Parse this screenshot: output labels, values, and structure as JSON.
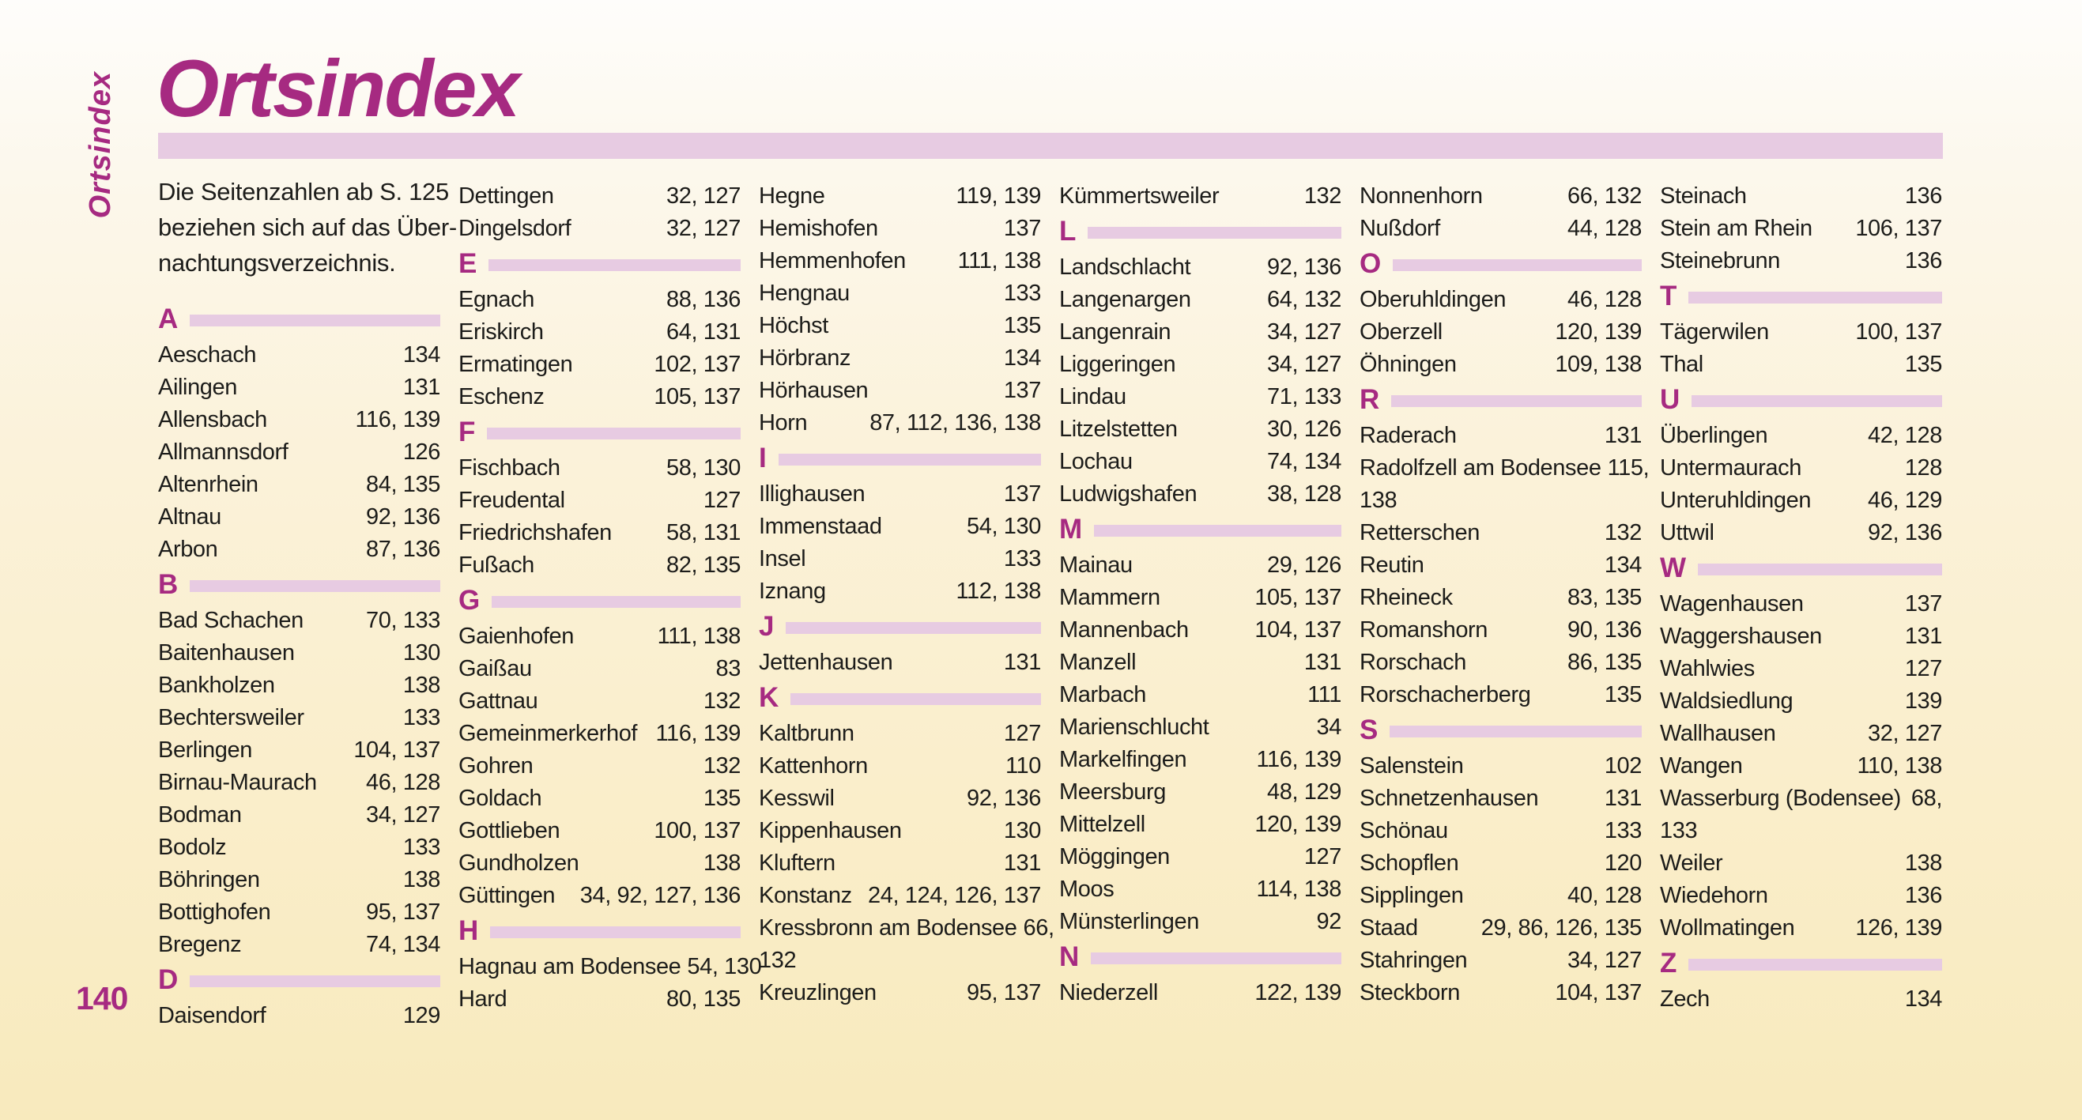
{
  "page": {
    "side_label": "Ortsindex",
    "title": "Ortsindex",
    "intro_lines": [
      "Die Seitenzahlen ab S. 125",
      "beziehen sich auf das Über-",
      "nachtungsverzeichnis."
    ],
    "page_number": "140"
  },
  "colors": {
    "magenta": "#a62a81",
    "bar_pink": "#e7cbe2",
    "text": "#1c1c1a"
  },
  "columns": [
    {
      "blocks": [
        {
          "letter": "A"
        },
        {
          "name": "Aeschach",
          "pages": "134"
        },
        {
          "name": "Ailingen",
          "pages": "131"
        },
        {
          "name": "Allensbach",
          "pages": "116, 139"
        },
        {
          "name": "Allmannsdorf",
          "pages": "126"
        },
        {
          "name": "Altenrhein",
          "pages": "84, 135"
        },
        {
          "name": "Altnau",
          "pages": "92, 136"
        },
        {
          "name": "Arbon",
          "pages": "87, 136"
        },
        {
          "letter": "B"
        },
        {
          "name": "Bad Schachen",
          "pages": "70, 133"
        },
        {
          "name": "Baitenhausen",
          "pages": "130"
        },
        {
          "name": "Bankholzen",
          "pages": "138"
        },
        {
          "name": "Bechtersweiler",
          "pages": "133"
        },
        {
          "name": "Berlingen",
          "pages": "104, 137"
        },
        {
          "name": "Birnau-Maurach",
          "pages": "46, 128"
        },
        {
          "name": "Bodman",
          "pages": "34, 127"
        },
        {
          "name": "Bodolz",
          "pages": "133"
        },
        {
          "name": "Böhringen",
          "pages": "138"
        },
        {
          "name": "Bottighofen",
          "pages": "95, 137"
        },
        {
          "name": "Bregenz",
          "pages": "74, 134"
        },
        {
          "letter": "D"
        },
        {
          "name": "Daisendorf",
          "pages": "129"
        }
      ]
    },
    {
      "blocks": [
        {
          "name": "Dettingen",
          "pages": "32, 127"
        },
        {
          "name": "Dingelsdorf",
          "pages": "32, 127"
        },
        {
          "letter": "E"
        },
        {
          "name": "Egnach",
          "pages": "88, 136"
        },
        {
          "name": "Eriskirch",
          "pages": "64, 131"
        },
        {
          "name": "Ermatingen",
          "pages": "102, 137"
        },
        {
          "name": "Eschenz",
          "pages": "105, 137"
        },
        {
          "letter": "F"
        },
        {
          "name": "Fischbach",
          "pages": "58, 130"
        },
        {
          "name": "Freudental",
          "pages": "127"
        },
        {
          "name": "Friedrichshafen",
          "pages": "58, 131"
        },
        {
          "name": "Fußach",
          "pages": "82, 135"
        },
        {
          "letter": "G"
        },
        {
          "name": "Gaienhofen",
          "pages": "111, 138"
        },
        {
          "name": "Gaißau",
          "pages": "83"
        },
        {
          "name": "Gattnau",
          "pages": "132"
        },
        {
          "name": "Gemeinmerkerhof",
          "pages": "116, 139"
        },
        {
          "name": "Gohren",
          "pages": "132"
        },
        {
          "name": "Goldach",
          "pages": "135"
        },
        {
          "name": "Gottlieben",
          "pages": "100, 137"
        },
        {
          "name": "Gundholzen",
          "pages": "138"
        },
        {
          "name": "Güttingen",
          "pages": "34, 92, 127, 136"
        },
        {
          "letter": "H"
        },
        {
          "name": "Hagnau am Bodensee",
          "pages": "54, 130"
        },
        {
          "name": "Hard",
          "pages": "80, 135"
        }
      ]
    },
    {
      "blocks": [
        {
          "name": "Hegne",
          "pages": "119, 139"
        },
        {
          "name": "Hemishofen",
          "pages": "137"
        },
        {
          "name": "Hemmenhofen",
          "pages": "111, 138"
        },
        {
          "name": "Hengnau",
          "pages": "133"
        },
        {
          "name": "Höchst",
          "pages": "135"
        },
        {
          "name": "Hörbranz",
          "pages": "134"
        },
        {
          "name": "Hörhausen",
          "pages": "137"
        },
        {
          "name": "Horn",
          "pages": "87, 112, 136, 138"
        },
        {
          "letter": "I"
        },
        {
          "name": "Illighausen",
          "pages": "137"
        },
        {
          "name": "Immenstaad",
          "pages": "54, 130"
        },
        {
          "name": "Insel",
          "pages": "133"
        },
        {
          "name": "Iznang",
          "pages": "112, 138"
        },
        {
          "letter": "J"
        },
        {
          "name": "Jettenhausen",
          "pages": "131"
        },
        {
          "letter": "K"
        },
        {
          "name": "Kaltbrunn",
          "pages": "127"
        },
        {
          "name": "Kattenhorn",
          "pages": "110"
        },
        {
          "name": "Kesswil",
          "pages": "92, 136"
        },
        {
          "name": "Kippenhausen",
          "pages": "130"
        },
        {
          "name": "Kluftern",
          "pages": "131"
        },
        {
          "name": "Konstanz",
          "pages": "24, 124, 126, 137"
        },
        {
          "name": "Kressbronn am Bodensee",
          "pages": "66,",
          "wrap": "132"
        },
        {
          "name": "Kreuzlingen",
          "pages": "95, 137"
        }
      ]
    },
    {
      "blocks": [
        {
          "name": "Kümmertsweiler",
          "pages": "132"
        },
        {
          "letter": "L"
        },
        {
          "name": "Landschlacht",
          "pages": "92, 136"
        },
        {
          "name": "Langenargen",
          "pages": "64, 132"
        },
        {
          "name": "Langenrain",
          "pages": "34, 127"
        },
        {
          "name": "Liggeringen",
          "pages": "34, 127"
        },
        {
          "name": "Lindau",
          "pages": "71, 133"
        },
        {
          "name": "Litzelstetten",
          "pages": "30, 126"
        },
        {
          "name": "Lochau",
          "pages": "74, 134"
        },
        {
          "name": "Ludwigshafen",
          "pages": "38, 128"
        },
        {
          "letter": "M"
        },
        {
          "name": "Mainau",
          "pages": "29, 126"
        },
        {
          "name": "Mammern",
          "pages": "105, 137"
        },
        {
          "name": "Mannenbach",
          "pages": "104, 137"
        },
        {
          "name": "Manzell",
          "pages": "131"
        },
        {
          "name": "Marbach",
          "pages": "111"
        },
        {
          "name": "Marienschlucht",
          "pages": "34"
        },
        {
          "name": "Markelfingen",
          "pages": "116, 139"
        },
        {
          "name": "Meersburg",
          "pages": "48, 129"
        },
        {
          "name": "Mittelzell",
          "pages": "120, 139"
        },
        {
          "name": "Möggingen",
          "pages": "127"
        },
        {
          "name": "Moos",
          "pages": "114, 138"
        },
        {
          "name": "Münsterlingen",
          "pages": "92"
        },
        {
          "letter": "N"
        },
        {
          "name": "Niederzell",
          "pages": "122, 139"
        }
      ]
    },
    {
      "blocks": [
        {
          "name": "Nonnenhorn",
          "pages": "66, 132"
        },
        {
          "name": "Nußdorf",
          "pages": "44, 128"
        },
        {
          "letter": "O"
        },
        {
          "name": "Oberuhldingen",
          "pages": "46, 128"
        },
        {
          "name": "Oberzell",
          "pages": "120, 139"
        },
        {
          "name": "Öhningen",
          "pages": "109, 138"
        },
        {
          "letter": "R"
        },
        {
          "name": "Raderach",
          "pages": "131"
        },
        {
          "name": "Radolfzell am Bodensee",
          "pages": "115,",
          "wrap": "138"
        },
        {
          "name": "Retterschen",
          "pages": "132"
        },
        {
          "name": "Reutin",
          "pages": "134"
        },
        {
          "name": "Rheineck",
          "pages": "83, 135"
        },
        {
          "name": "Romanshorn",
          "pages": "90, 136"
        },
        {
          "name": "Rorschach",
          "pages": "86, 135"
        },
        {
          "name": "Rorschacherberg",
          "pages": "135"
        },
        {
          "letter": "S"
        },
        {
          "name": "Salenstein",
          "pages": "102"
        },
        {
          "name": "Schnetzenhausen",
          "pages": "131"
        },
        {
          "name": "Schönau",
          "pages": "133"
        },
        {
          "name": "Schopflen",
          "pages": "120"
        },
        {
          "name": "Sipplingen",
          "pages": "40, 128"
        },
        {
          "name": "Staad",
          "pages": "29, 86, 126, 135"
        },
        {
          "name": "Stahringen",
          "pages": "34, 127"
        },
        {
          "name": "Steckborn",
          "pages": "104, 137"
        }
      ]
    },
    {
      "blocks": [
        {
          "name": "Steinach",
          "pages": "136"
        },
        {
          "name": "Stein am Rhein",
          "pages": "106, 137"
        },
        {
          "name": "Steinebrunn",
          "pages": "136"
        },
        {
          "letter": "T"
        },
        {
          "name": "Tägerwilen",
          "pages": "100, 137"
        },
        {
          "name": "Thal",
          "pages": "135"
        },
        {
          "letter": "U"
        },
        {
          "name": "Überlingen",
          "pages": "42, 128"
        },
        {
          "name": "Untermaurach",
          "pages": "128"
        },
        {
          "name": "Unteruhldingen",
          "pages": "46, 129"
        },
        {
          "name": "Uttwil",
          "pages": "92, 136"
        },
        {
          "letter": "W"
        },
        {
          "name": "Wagenhausen",
          "pages": "137"
        },
        {
          "name": "Waggershausen",
          "pages": "131"
        },
        {
          "name": "Wahlwies",
          "pages": "127"
        },
        {
          "name": "Waldsiedlung",
          "pages": "139"
        },
        {
          "name": "Wallhausen",
          "pages": "32, 127"
        },
        {
          "name": "Wangen",
          "pages": "110, 138"
        },
        {
          "name": "Wasserburg (Bodensee)",
          "pages": "68,",
          "wrap": "133"
        },
        {
          "name": "Weiler",
          "pages": "138"
        },
        {
          "name": "Wiedehorn",
          "pages": "136"
        },
        {
          "name": "Wollmatingen",
          "pages": "126, 139"
        },
        {
          "letter": "Z"
        },
        {
          "name": "Zech",
          "pages": "134"
        }
      ]
    }
  ]
}
